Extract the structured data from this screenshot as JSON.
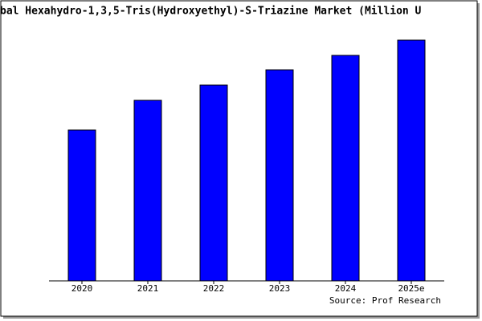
{
  "chart_data": {
    "type": "bar",
    "title": "bal Hexahydro-1,3,5-Tris(Hydroxyethyl)-S-Triazine Market (Million U",
    "source": "Source: Prof Research",
    "categories": [
      "2020",
      "2021",
      "2022",
      "2023",
      "2024",
      "2025e"
    ],
    "values": [
      188,
      225,
      244,
      263,
      281,
      300
    ],
    "color": "#0000ff",
    "ylim": [
      0,
      310
    ]
  }
}
